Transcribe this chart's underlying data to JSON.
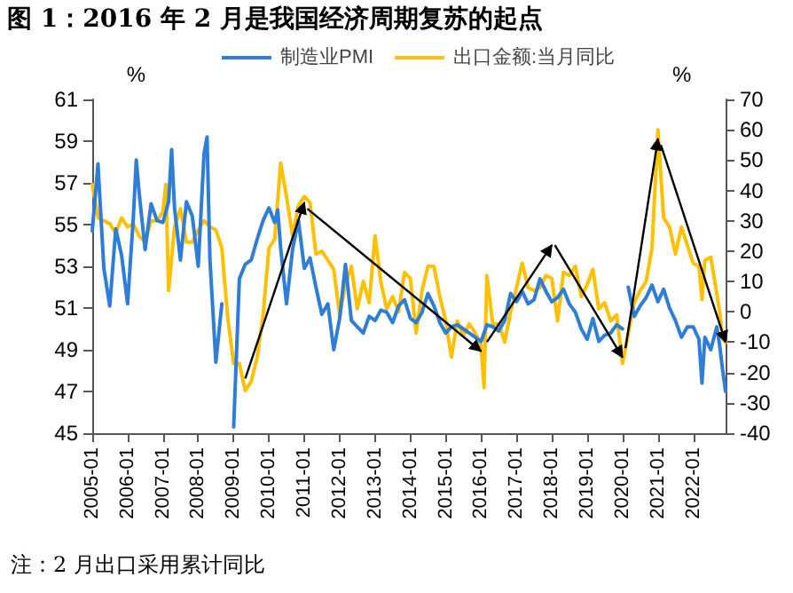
{
  "chart_data": {
    "type": "line",
    "title": "图 1：2016 年 2 月是我国经济周期复苏的起点",
    "ylabel": "%",
    "y2label": "%",
    "annotations": [
      "注：2 月出口采用累计同比"
    ],
    "xlim": [
      "2005-01",
      "2022-12"
    ],
    "xticks": [
      "2005-01",
      "2006-01",
      "2007-01",
      "2008-01",
      "2009-01",
      "2010-01",
      "2011-01",
      "2012-01",
      "2013-01",
      "2014-01",
      "2015-01",
      "2016-01",
      "2017-01",
      "2018-01",
      "2019-01",
      "2020-01",
      "2021-01",
      "2022-01"
    ],
    "ylim": [
      45,
      61
    ],
    "yticks": [
      45,
      47,
      49,
      51,
      53,
      55,
      57,
      59,
      61
    ],
    "y2lim": [
      -40,
      70
    ],
    "y2ticks": [
      -40,
      -30,
      -20,
      -10,
      0,
      10,
      20,
      30,
      40,
      50,
      60,
      70
    ],
    "legend": "top",
    "grid": false,
    "marker": "none",
    "line_style": "solid",
    "series": [
      {
        "name": "制造业PMI",
        "color": "#2e7dd7",
        "x": [
          "2005-01",
          "2005-03",
          "2005-05",
          "2005-07",
          "2005-09",
          "2005-11",
          "2006-01",
          "2006-03",
          "2006-04",
          "2006-05",
          "2006-07",
          "2006-09",
          "2006-11",
          "2007-01",
          "2007-03",
          "2007-04",
          "2007-05",
          "2007-07",
          "2007-09",
          "2007-11",
          "2008-01",
          "2008-03",
          "2008-04",
          "2008-05",
          "2008-07",
          "2008-09",
          "2008-11",
          "2008-12",
          "2009-01",
          "2009-03",
          "2009-05",
          "2009-07",
          "2009-09",
          "2009-11",
          "2010-01",
          "2010-03",
          "2010-04",
          "2010-05",
          "2010-07",
          "2010-09",
          "2010-11",
          "2011-01",
          "2011-03",
          "2011-05",
          "2011-07",
          "2011-09",
          "2011-11",
          "2012-01",
          "2012-03",
          "2012-05",
          "2012-07",
          "2012-09",
          "2012-11",
          "2013-01",
          "2013-03",
          "2013-05",
          "2013-07",
          "2013-09",
          "2013-11",
          "2014-01",
          "2014-03",
          "2014-05",
          "2014-07",
          "2014-09",
          "2014-11",
          "2015-01",
          "2015-03",
          "2015-05",
          "2015-07",
          "2015-09",
          "2015-11",
          "2016-01",
          "2016-03",
          "2016-05",
          "2016-07",
          "2016-09",
          "2016-11",
          "2017-01",
          "2017-03",
          "2017-05",
          "2017-07",
          "2017-09",
          "2017-11",
          "2018-01",
          "2018-03",
          "2018-05",
          "2018-07",
          "2018-09",
          "2018-11",
          "2019-01",
          "2019-03",
          "2019-05",
          "2019-07",
          "2019-09",
          "2019-11",
          "2020-01",
          "2020-02",
          "2020-03",
          "2020-05",
          "2020-07",
          "2020-09",
          "2020-11",
          "2021-01",
          "2021-03",
          "2021-05",
          "2021-07",
          "2021-09",
          "2021-11",
          "2022-01",
          "2022-03",
          "2022-04",
          "2022-05",
          "2022-07",
          "2022-09",
          "2022-10",
          "2022-11",
          "2022-12"
        ],
        "values": [
          54.7,
          57.9,
          52.9,
          51.1,
          54.8,
          53.5,
          51.2,
          55.3,
          58.1,
          56.5,
          53.8,
          56.0,
          55.2,
          55.1,
          56.1,
          58.6,
          55.8,
          53.3,
          56.1,
          55.4,
          53.0,
          58.4,
          59.2,
          53.3,
          48.4,
          51.2,
          null,
          null,
          45.3,
          52.4,
          53.1,
          53.3,
          54.3,
          55.2,
          55.8,
          55.1,
          55.7,
          53.9,
          51.2,
          53.8,
          55.2,
          52.9,
          53.4,
          52.0,
          50.7,
          51.2,
          49.0,
          50.5,
          53.1,
          50.4,
          50.1,
          49.8,
          50.6,
          50.4,
          50.9,
          50.8,
          50.3,
          51.1,
          51.4,
          50.5,
          50.3,
          50.8,
          51.7,
          51.1,
          50.3,
          49.8,
          50.1,
          50.2,
          50.0,
          49.8,
          49.6,
          49.4,
          50.2,
          50.1,
          49.9,
          50.4,
          51.7,
          51.3,
          51.8,
          51.2,
          51.4,
          52.4,
          51.8,
          51.3,
          51.5,
          51.9,
          51.2,
          50.8,
          50.0,
          49.5,
          50.5,
          49.4,
          49.7,
          49.8,
          50.2,
          50.0,
          null,
          52.0,
          50.6,
          51.1,
          51.5,
          52.1,
          51.3,
          51.9,
          51.0,
          50.4,
          49.6,
          50.1,
          50.1,
          49.5,
          47.4,
          49.6,
          49.0,
          50.1,
          49.2,
          48.0,
          47.0
        ]
      },
      {
        "name": "出口金额:当月同比",
        "color": "#ffc000",
        "axis": "y2",
        "x": [
          "2005-01",
          "2005-03",
          "2005-05",
          "2005-07",
          "2005-09",
          "2005-11",
          "2006-01",
          "2006-03",
          "2006-05",
          "2006-07",
          "2006-09",
          "2006-11",
          "2007-01",
          "2007-02",
          "2007-03",
          "2007-05",
          "2007-07",
          "2007-09",
          "2007-11",
          "2008-01",
          "2008-03",
          "2008-05",
          "2008-07",
          "2008-09",
          "2008-11",
          "2009-01",
          "2009-03",
          "2009-05",
          "2009-07",
          "2009-09",
          "2009-11",
          "2010-01",
          "2010-03",
          "2010-05",
          "2010-07",
          "2010-09",
          "2010-11",
          "2011-01",
          "2011-03",
          "2011-05",
          "2011-07",
          "2011-09",
          "2011-11",
          "2012-01",
          "2012-03",
          "2012-05",
          "2012-07",
          "2012-09",
          "2012-11",
          "2013-01",
          "2013-03",
          "2013-05",
          "2013-07",
          "2013-09",
          "2013-11",
          "2014-01",
          "2014-03",
          "2014-05",
          "2014-07",
          "2014-09",
          "2014-11",
          "2015-01",
          "2015-03",
          "2015-05",
          "2015-07",
          "2015-09",
          "2015-11",
          "2016-01",
          "2016-02",
          "2016-03",
          "2016-05",
          "2016-07",
          "2016-09",
          "2016-11",
          "2017-01",
          "2017-03",
          "2017-05",
          "2017-07",
          "2017-09",
          "2017-11",
          "2018-01",
          "2018-03",
          "2018-05",
          "2018-07",
          "2018-09",
          "2018-11",
          "2019-01",
          "2019-03",
          "2019-05",
          "2019-07",
          "2019-09",
          "2019-11",
          "2020-01",
          "2020-03",
          "2020-05",
          "2020-07",
          "2020-09",
          "2020-11",
          "2021-01",
          "2021-03",
          "2021-05",
          "2021-07",
          "2021-09",
          "2021-11",
          "2022-01",
          "2022-03",
          "2022-04",
          "2022-05",
          "2022-07",
          "2022-09",
          "2022-10",
          "2022-11",
          "2022-12"
        ],
        "values": [
          42,
          31,
          30,
          29,
          26,
          31,
          28,
          29,
          25,
          23,
          30,
          30,
          33,
          42,
          7,
          28,
          34,
          23,
          23,
          27,
          30,
          28,
          27,
          21,
          -2,
          -17,
          -17,
          -26,
          -23,
          -15,
          -1,
          21,
          24,
          49,
          38,
          25,
          35,
          38,
          36,
          19,
          20,
          17,
          14,
          -1,
          9,
          15,
          1,
          10,
          3,
          25,
          10,
          1,
          5,
          0,
          13,
          11,
          -7,
          7,
          15,
          15,
          5,
          -3,
          -15,
          -3,
          -8,
          -4,
          -7,
          -11,
          -25,
          12,
          -4,
          -4,
          -10,
          0,
          8,
          16,
          8,
          7,
          8,
          12,
          11,
          -3,
          13,
          12,
          15,
          5,
          9,
          14,
          1,
          3,
          -3,
          -1,
          -17,
          -7,
          3,
          7,
          10,
          21,
          60,
          31,
          28,
          19,
          28,
          22,
          16,
          15,
          4,
          17,
          18,
          6,
          0,
          -9,
          -10
        ]
      }
    ]
  }
}
